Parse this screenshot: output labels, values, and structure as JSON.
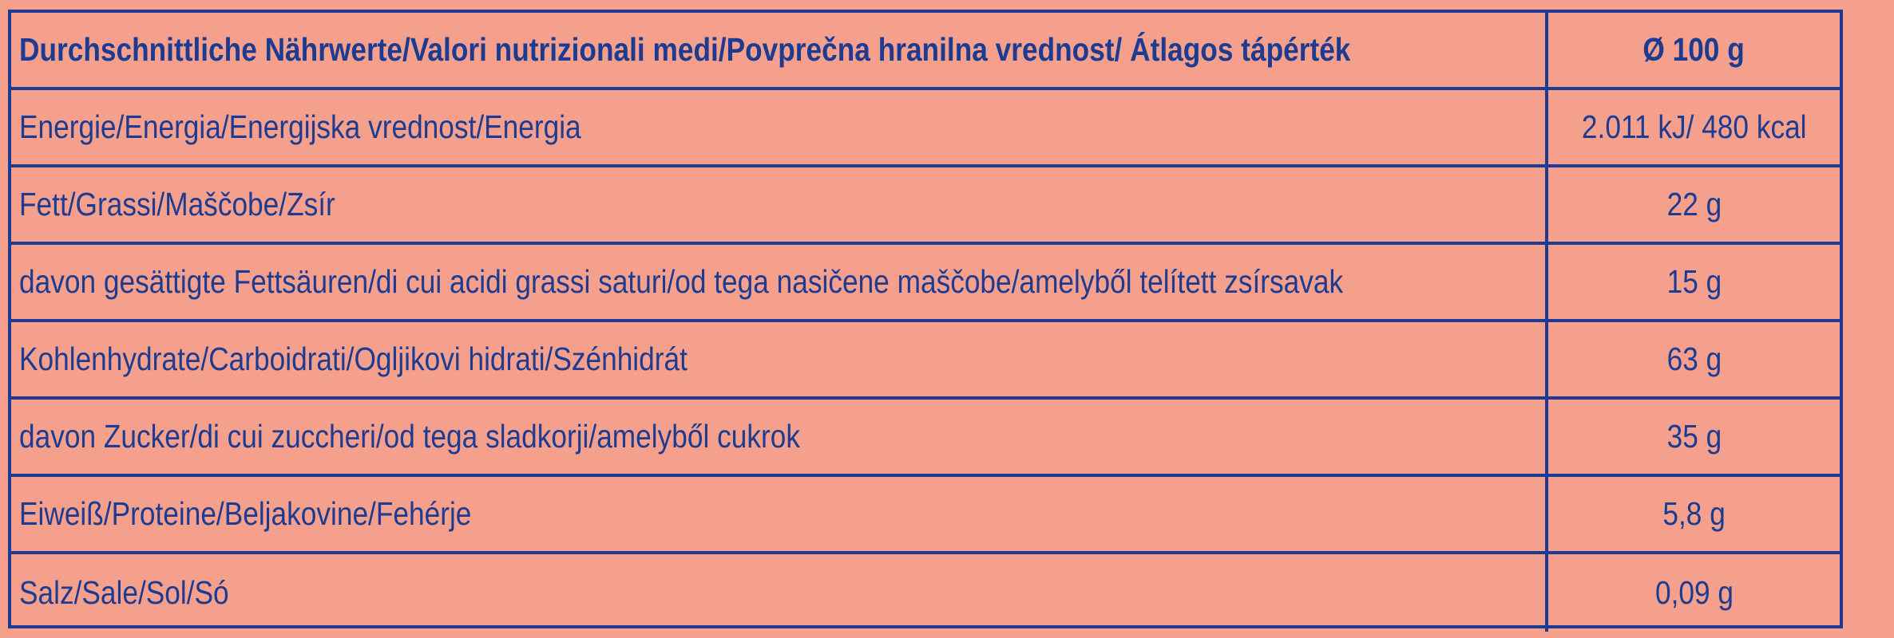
{
  "colors": {
    "background": "#f4a08d",
    "text": "#1d3c91",
    "border": "#1d3c91"
  },
  "table": {
    "header": {
      "label": "Durchschnittliche Nährwerte/Valori nutrizionali medi/Povprečna hranilna vrednost/ Átlagos tápérték",
      "value": "Ø 100 g"
    },
    "rows": [
      {
        "label": "Energie/Energia/Energijska vrednost/Energia",
        "value": "2.011 kJ/ 480 kcal"
      },
      {
        "label": "Fett/Grassi/Maščobe/Zsír",
        "value": "22 g"
      },
      {
        "label": "davon gesättigte Fettsäuren/di cui acidi grassi saturi/od tega nasičene maščobe/amelyből telített zsírsavak",
        "value": "15 g"
      },
      {
        "label": "Kohlenhydrate/Carboidrati/Ogljikovi hidrati/Szénhidrát",
        "value": "63 g"
      },
      {
        "label": "davon Zucker/di cui zuccheri/od tega sladkorji/amelyből cukrok",
        "value": "35 g"
      },
      {
        "label": "Eiweiß/Proteine/Beljakovine/Fehérje",
        "value": "5,8 g"
      },
      {
        "label": "Salz/Sale/Sol/Só",
        "value": "0,09 g"
      }
    ]
  }
}
